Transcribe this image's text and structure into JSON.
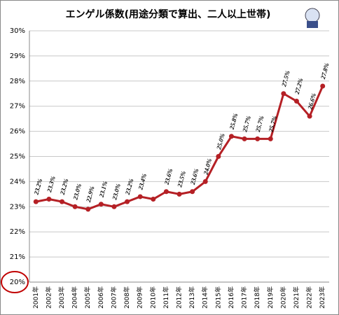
{
  "chart_data": {
    "type": "line",
    "title": "エンゲル係数(用途分類で算出、二人以上世帯)",
    "categories": [
      "2001年",
      "2002年",
      "2003年",
      "2004年",
      "2005年",
      "2006年",
      "2007年",
      "2008年",
      "2009年",
      "2010年",
      "2011年",
      "2012年",
      "2013年",
      "2014年",
      "2015年",
      "2016年",
      "2017年",
      "2018年",
      "2019年",
      "2020年",
      "2021年",
      "2022年",
      "2023年"
    ],
    "values": [
      23.2,
      23.3,
      23.2,
      23.0,
      22.9,
      23.1,
      23.0,
      23.2,
      23.4,
      23.3,
      23.6,
      23.5,
      23.6,
      24.0,
      25.0,
      25.8,
      25.7,
      25.7,
      25.7,
      27.5,
      27.2,
      26.6,
      27.8
    ],
    "value_labels": [
      "23.2%",
      "23.3%",
      "23.2%",
      "23.0%",
      "22.9%",
      "23.1%",
      "23.0%",
      "23.2%",
      "23.4%",
      null,
      "23.6%",
      "23.5%",
      "23.6%",
      "24.0%",
      "25.0%",
      "25.8%",
      "25.7%",
      "25.7%",
      "25.7%",
      "27.5%",
      "27.2%",
      "26.6%",
      "27.8%"
    ],
    "color": "#b52025",
    "ylim": [
      20,
      30
    ],
    "yticks": [
      {
        "value": 20,
        "label": "20%"
      },
      {
        "value": 21,
        "label": "21%"
      },
      {
        "value": 22,
        "label": "22%"
      },
      {
        "value": 23,
        "label": "23%"
      },
      {
        "value": 24,
        "label": "24%"
      },
      {
        "value": 25,
        "label": "25%"
      },
      {
        "value": 26,
        "label": "26%"
      },
      {
        "value": 27,
        "label": "27%"
      },
      {
        "value": 28,
        "label": "28%"
      },
      {
        "value": 29,
        "label": "29%"
      },
      {
        "value": 30,
        "label": "30%"
      }
    ],
    "grid": true
  }
}
